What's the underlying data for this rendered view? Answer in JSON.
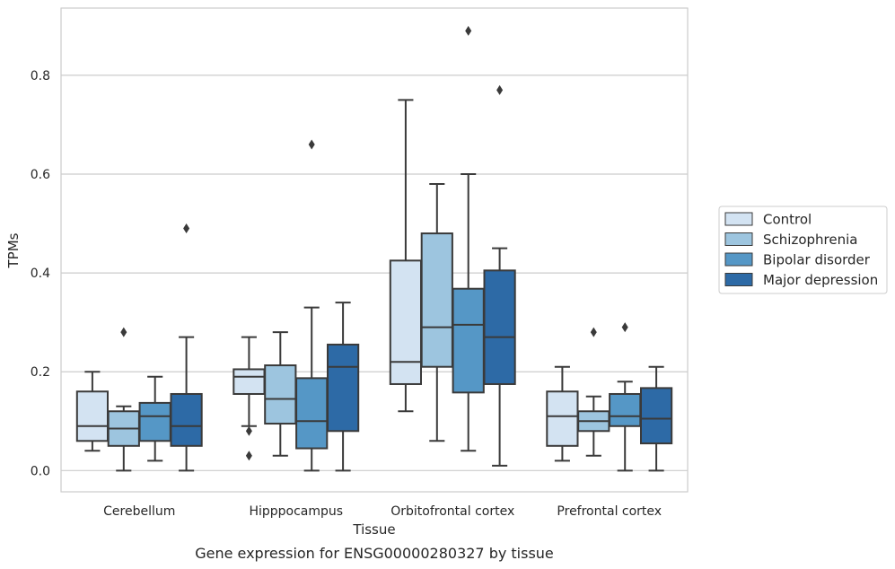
{
  "caption": "Gene expression for ENSG00000280327 by tissue",
  "chart_data": {
    "type": "box",
    "xlabel": "Tissue",
    "ylabel": "TPMs",
    "ylim": [
      -0.043,
      0.936
    ],
    "yticks": [
      0.0,
      0.2,
      0.4,
      0.6,
      0.8
    ],
    "ytick_labels": [
      "0.0",
      "0.2",
      "0.4",
      "0.6",
      "0.8"
    ],
    "grid": "horizontal",
    "legend_position": "right",
    "categories": [
      "Cerebellum",
      "Hipppocampus",
      "Orbitofrontal cortex",
      "Prefrontal cortex"
    ],
    "series": [
      {
        "name": "Control",
        "color": "#d3e3f2",
        "boxes": [
          {
            "whisker_low": 0.04,
            "q1": 0.06,
            "median": 0.09,
            "q3": 0.16,
            "whisker_high": 0.2,
            "outliers": []
          },
          {
            "whisker_low": 0.09,
            "q1": 0.155,
            "median": 0.19,
            "q3": 0.205,
            "whisker_high": 0.27,
            "outliers": [
              0.08,
              0.03
            ]
          },
          {
            "whisker_low": 0.12,
            "q1": 0.175,
            "median": 0.22,
            "q3": 0.425,
            "whisker_high": 0.75,
            "outliers": []
          },
          {
            "whisker_low": 0.02,
            "q1": 0.05,
            "median": 0.11,
            "q3": 0.16,
            "whisker_high": 0.21,
            "outliers": []
          }
        ]
      },
      {
        "name": "Schizophrenia",
        "color": "#9dc5df",
        "boxes": [
          {
            "whisker_low": 0.0,
            "q1": 0.05,
            "median": 0.085,
            "q3": 0.12,
            "whisker_high": 0.13,
            "outliers": [
              0.28
            ]
          },
          {
            "whisker_low": 0.03,
            "q1": 0.095,
            "median": 0.145,
            "q3": 0.213,
            "whisker_high": 0.28,
            "outliers": []
          },
          {
            "whisker_low": 0.06,
            "q1": 0.21,
            "median": 0.29,
            "q3": 0.48,
            "whisker_high": 0.58,
            "outliers": []
          },
          {
            "whisker_low": 0.03,
            "q1": 0.08,
            "median": 0.1,
            "q3": 0.12,
            "whisker_high": 0.15,
            "outliers": [
              0.28
            ]
          }
        ]
      },
      {
        "name": "Bipolar disorder",
        "color": "#5597c6",
        "boxes": [
          {
            "whisker_low": 0.02,
            "q1": 0.06,
            "median": 0.11,
            "q3": 0.137,
            "whisker_high": 0.19,
            "outliers": []
          },
          {
            "whisker_low": 0.0,
            "q1": 0.045,
            "median": 0.1,
            "q3": 0.187,
            "whisker_high": 0.33,
            "outliers": [
              0.66
            ]
          },
          {
            "whisker_low": 0.04,
            "q1": 0.158,
            "median": 0.295,
            "q3": 0.368,
            "whisker_high": 0.6,
            "outliers": [
              0.89
            ]
          },
          {
            "whisker_low": 0.0,
            "q1": 0.09,
            "median": 0.11,
            "q3": 0.155,
            "whisker_high": 0.18,
            "outliers": [
              0.29
            ]
          }
        ]
      },
      {
        "name": "Major depression",
        "color": "#2d6aa6",
        "boxes": [
          {
            "whisker_low": 0.0,
            "q1": 0.05,
            "median": 0.09,
            "q3": 0.155,
            "whisker_high": 0.27,
            "outliers": [
              0.49
            ]
          },
          {
            "whisker_low": 0.0,
            "q1": 0.08,
            "median": 0.21,
            "q3": 0.255,
            "whisker_high": 0.34,
            "outliers": []
          },
          {
            "whisker_low": 0.01,
            "q1": 0.175,
            "median": 0.27,
            "q3": 0.405,
            "whisker_high": 0.45,
            "outliers": [
              0.77
            ]
          },
          {
            "whisker_low": 0.0,
            "q1": 0.055,
            "median": 0.105,
            "q3": 0.167,
            "whisker_high": 0.21,
            "outliers": []
          }
        ]
      }
    ]
  }
}
